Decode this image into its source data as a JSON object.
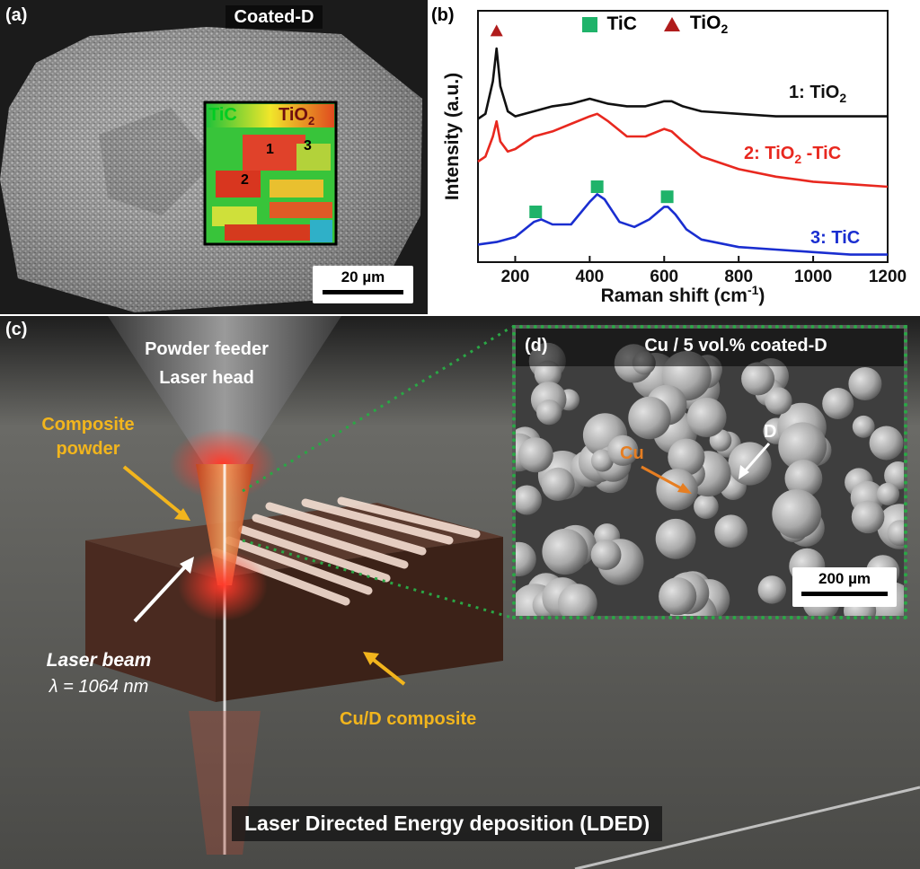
{
  "panel_a": {
    "tag": "(a)",
    "title": "Coated-D",
    "map_label_left": "TiC",
    "map_label_right": "TiO",
    "map_label_right_sub": "2",
    "points": [
      "1",
      "2",
      "3"
    ],
    "scale_bar": "20 µm"
  },
  "panel_b": {
    "tag": "(b)",
    "legend": {
      "tic": "TiC",
      "tio2": "TiO",
      "tio2_sub": "2",
      "tic_color": "#1fb36a",
      "tio2_color": "#b01c1c"
    },
    "curve_labels": [
      {
        "text": "1: TiO",
        "sub": "2",
        "color": "#111111"
      },
      {
        "text": "2: TiO",
        "sub": "2",
        "tail": " -TiC",
        "color": "#e8281f"
      },
      {
        "text": "3: TiC",
        "sub": "",
        "color": "#1a2ed0"
      }
    ]
  },
  "chart_data": {
    "type": "line",
    "xlabel": "Raman shift (cm",
    "xlabel_sup": "-1",
    "xlabel_end": ")",
    "ylabel": "Intensity (a.u.)",
    "xlim": [
      100,
      1200
    ],
    "xticks": [
      200,
      400,
      600,
      800,
      1000,
      1200
    ],
    "grid": false,
    "series": [
      {
        "name": "1: TiO2",
        "color": "#111111",
        "x": [
          100,
          120,
          140,
          150,
          160,
          180,
          200,
          250,
          300,
          350,
          400,
          450,
          500,
          550,
          600,
          620,
          650,
          700,
          800,
          900,
          1000,
          1100,
          1200
        ],
        "y": [
          0.57,
          0.59,
          0.72,
          0.85,
          0.7,
          0.6,
          0.58,
          0.6,
          0.62,
          0.63,
          0.65,
          0.63,
          0.62,
          0.62,
          0.64,
          0.64,
          0.62,
          0.6,
          0.59,
          0.58,
          0.58,
          0.58,
          0.58
        ]
      },
      {
        "name": "2: TiO2 -TiC",
        "color": "#e8281f",
        "x": [
          100,
          120,
          140,
          150,
          160,
          180,
          200,
          250,
          300,
          350,
          400,
          420,
          450,
          500,
          550,
          600,
          620,
          650,
          700,
          800,
          900,
          1000,
          1100,
          1200
        ],
        "y": [
          0.4,
          0.42,
          0.5,
          0.56,
          0.48,
          0.44,
          0.45,
          0.5,
          0.52,
          0.55,
          0.58,
          0.59,
          0.56,
          0.5,
          0.5,
          0.53,
          0.52,
          0.48,
          0.42,
          0.37,
          0.34,
          0.32,
          0.31,
          0.3
        ]
      },
      {
        "name": "3: TiC",
        "color": "#1a2ed0",
        "x": [
          100,
          150,
          200,
          250,
          270,
          300,
          350,
          400,
          420,
          440,
          480,
          520,
          560,
          600,
          610,
          630,
          660,
          700,
          800,
          900,
          1000,
          1100,
          1200
        ],
        "y": [
          0.07,
          0.08,
          0.1,
          0.16,
          0.17,
          0.15,
          0.15,
          0.24,
          0.27,
          0.25,
          0.16,
          0.14,
          0.17,
          0.22,
          0.22,
          0.19,
          0.13,
          0.09,
          0.06,
          0.05,
          0.04,
          0.03,
          0.03
        ]
      }
    ],
    "markers": [
      {
        "shape": "square",
        "series": 2,
        "x": 255,
        "y": 0.2
      },
      {
        "shape": "square",
        "series": 2,
        "x": 420,
        "y": 0.3
      },
      {
        "shape": "square",
        "series": 2,
        "x": 608,
        "y": 0.26
      },
      {
        "shape": "triangle",
        "series": 0,
        "x": 150,
        "y": 0.92
      }
    ]
  },
  "panel_c": {
    "tag": "(c)",
    "powder_feeder": "Powder feeder",
    "laser_head": "Laser head",
    "composite_powder_1": "Composite",
    "composite_powder_2": "powder",
    "laser_beam": "Laser beam",
    "lambda": "λ = 1064 nm",
    "cu_d": "Cu/D composite",
    "ldeds": "Laser Directed Energy deposition (LDED)"
  },
  "panel_d": {
    "tag": "(d)",
    "title": "Cu / 5 vol.% coated-D",
    "cu": "Cu",
    "d": "D",
    "scale_bar": "200 µm"
  }
}
